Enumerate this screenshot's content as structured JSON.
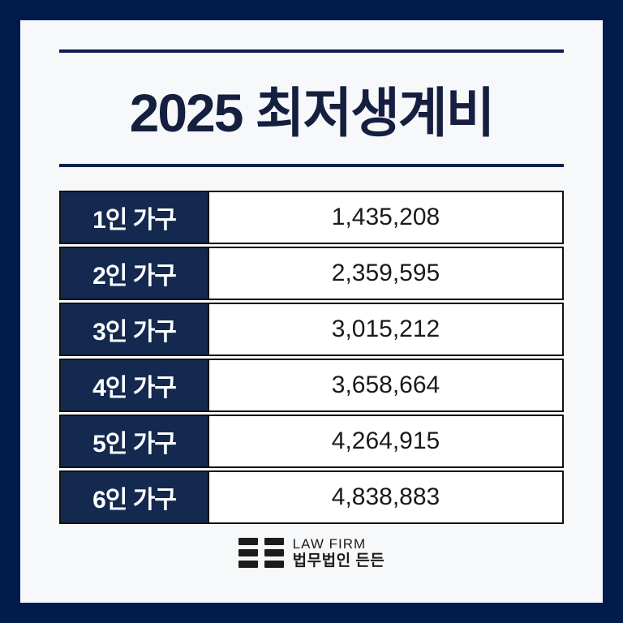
{
  "card": {
    "title": "2025 최저생계비",
    "colors": {
      "frame": "#021b4d",
      "background": "#f7f8f9",
      "rule": "#0a2050",
      "title_text": "#151f40",
      "label_bg": "#13294f",
      "table_border": "#111111",
      "value_text": "#1a1a1a",
      "logo_ink": "#1c1c1c"
    }
  },
  "table": {
    "rows": [
      {
        "label": "1인 가구",
        "value": "1,435,208"
      },
      {
        "label": "2인 가구",
        "value": "2,359,595"
      },
      {
        "label": "3인 가구",
        "value": "3,015,212"
      },
      {
        "label": "4인 가구",
        "value": "3,658,664"
      },
      {
        "label": "5인 가구",
        "value": "4,264,915"
      },
      {
        "label": "6인 가구",
        "value": "4,838,883"
      }
    ]
  },
  "footer": {
    "logo_icon": "bars-grid-icon",
    "firm_en": "LAW FIRM",
    "firm_ko": "법무법인 든든"
  },
  "chart_data": {
    "type": "table",
    "title": "2025 최저생계비",
    "categories": [
      "1인 가구",
      "2인 가구",
      "3인 가구",
      "4인 가구",
      "5인 가구",
      "6인 가구"
    ],
    "values": [
      1435208,
      2359595,
      3015212,
      3658664,
      4264915,
      4838883
    ],
    "values_formatted": [
      "1,435,208",
      "2,359,595",
      "3,015,212",
      "3,658,664",
      "4,264,915",
      "4,838,883"
    ]
  }
}
